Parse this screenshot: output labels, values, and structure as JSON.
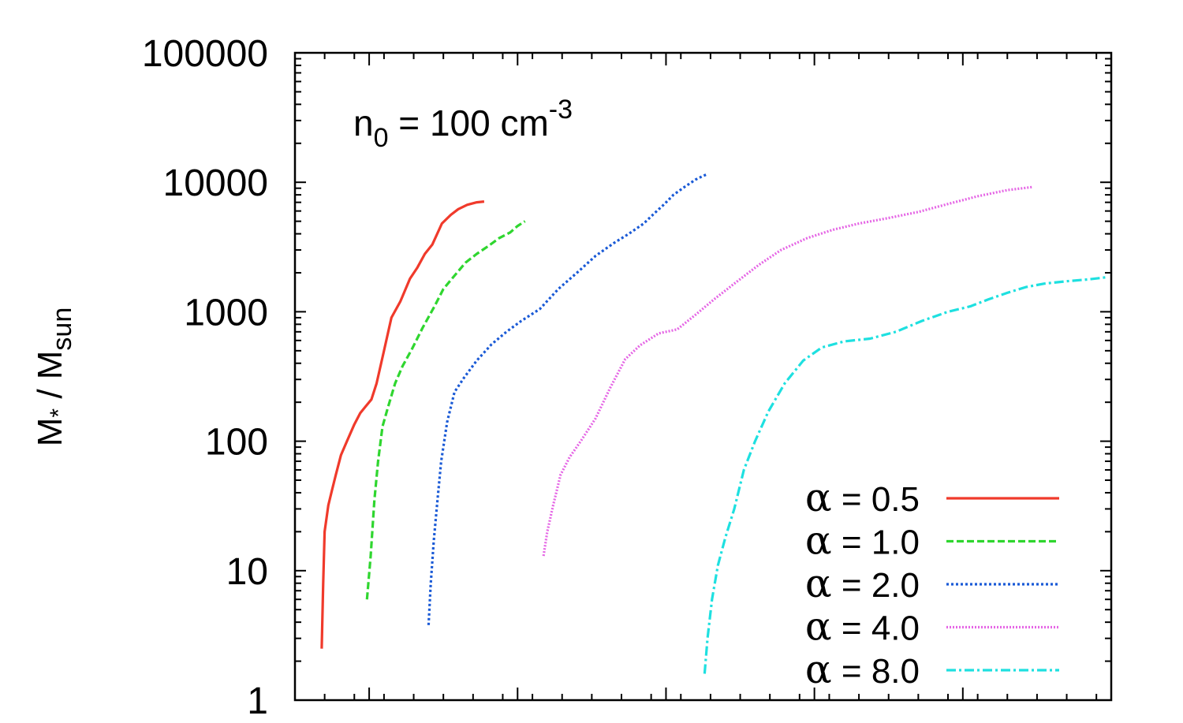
{
  "chart_data": {
    "type": "line",
    "title": "",
    "annotation": {
      "base": "n",
      "sub": "0",
      "mid": " = 100 cm",
      "sup": "-3"
    },
    "ylabel": {
      "base": "M",
      "star": "*",
      "mid": " / M",
      "sub": "sun"
    },
    "xlabel": "",
    "yscale": "log",
    "ylim": [
      1,
      100000
    ],
    "xlim": [
      0,
      11
    ],
    "y_tick_labels": [
      "1",
      "10",
      "100",
      "1000",
      "10000",
      "100000"
    ],
    "y_tick_values": [
      1,
      10,
      100,
      1000,
      10000,
      100000
    ],
    "x_major_ticks": [
      1,
      3,
      5,
      7,
      9
    ],
    "x_tick_labels_visible": false,
    "legend_position": "bottom-right",
    "series": [
      {
        "name": "α = 0.5",
        "alpha": "α",
        "value_label": " = 0.5",
        "color": "#f03a2b",
        "dash": "solid",
        "x": [
          0.36,
          0.38,
          0.4,
          0.45,
          0.5,
          0.55,
          0.62,
          0.7,
          0.8,
          0.88,
          0.95,
          1.03,
          1.1,
          1.2,
          1.3,
          1.42,
          1.55,
          1.65,
          1.75,
          1.85,
          1.98,
          2.1,
          2.2,
          2.32,
          2.45,
          2.55
        ],
        "y": [
          2.5,
          8,
          20,
          32,
          42,
          55,
          78,
          100,
          135,
          165,
          185,
          210,
          280,
          500,
          900,
          1200,
          1800,
          2200,
          2800,
          3300,
          4800,
          5600,
          6200,
          6700,
          7000,
          7100
        ]
      },
      {
        "name": "α = 1.0",
        "alpha": "α",
        "value_label": " = 1.0",
        "color": "#2fd62f",
        "dash": "dashed",
        "x": [
          0.97,
          1.02,
          1.07,
          1.12,
          1.18,
          1.25,
          1.35,
          1.45,
          1.58,
          1.72,
          1.88,
          2.0,
          2.15,
          2.3,
          2.45,
          2.6,
          2.75,
          2.9,
          3.0,
          3.1
        ],
        "y": [
          6,
          13,
          35,
          70,
          130,
          180,
          280,
          380,
          520,
          750,
          1100,
          1500,
          1900,
          2400,
          2800,
          3200,
          3700,
          4100,
          4600,
          5000
        ]
      },
      {
        "name": "α = 2.0",
        "alpha": "α",
        "value_label": " = 2.0",
        "color": "#1a5ad6",
        "dash": "dotted",
        "x": [
          1.8,
          1.83,
          1.87,
          1.92,
          1.97,
          2.05,
          2.15,
          2.28,
          2.45,
          2.65,
          2.85,
          3.05,
          3.3,
          3.55,
          3.8,
          4.05,
          4.3,
          4.5,
          4.7,
          4.85,
          4.98,
          5.1,
          5.25,
          5.4,
          5.5,
          5.55
        ],
        "y": [
          3.8,
          8,
          17,
          35,
          70,
          140,
          240,
          310,
          420,
          560,
          700,
          850,
          1050,
          1500,
          2000,
          2700,
          3400,
          4000,
          4800,
          5800,
          6800,
          8000,
          9200,
          10500,
          11200,
          11500
        ]
      },
      {
        "name": "α = 4.0",
        "alpha": "α",
        "value_label": " = 4.0",
        "color": "#e566e5",
        "dash": "densedot",
        "x": [
          3.35,
          3.4,
          3.48,
          3.58,
          3.7,
          3.85,
          4.05,
          4.25,
          4.45,
          4.65,
          4.9,
          5.15,
          5.4,
          5.65,
          5.95,
          6.25,
          6.55,
          6.9,
          7.25,
          7.6,
          8.0,
          8.4,
          8.8,
          9.2,
          9.6,
          9.95
        ],
        "y": [
          13,
          20,
          32,
          55,
          75,
          100,
          150,
          260,
          430,
          550,
          680,
          730,
          950,
          1250,
          1700,
          2300,
          3000,
          3700,
          4300,
          4800,
          5300,
          5900,
          6800,
          7800,
          8700,
          9200
        ]
      },
      {
        "name": "α = 8.0",
        "alpha": "α",
        "value_label": " = 8.0",
        "color": "#1ee0e0",
        "dash": "dashdot",
        "x": [
          5.52,
          5.56,
          5.62,
          5.7,
          5.8,
          5.92,
          6.05,
          6.2,
          6.38,
          6.6,
          6.85,
          7.1,
          7.4,
          7.75,
          8.1,
          8.45,
          8.8,
          9.1,
          9.35,
          9.6,
          9.85,
          10.1,
          10.4,
          10.7,
          10.95
        ],
        "y": [
          1.6,
          3,
          6,
          11,
          18,
          30,
          60,
          100,
          170,
          280,
          420,
          530,
          590,
          620,
          700,
          850,
          1000,
          1100,
          1250,
          1400,
          1550,
          1650,
          1720,
          1780,
          1850
        ]
      }
    ]
  }
}
